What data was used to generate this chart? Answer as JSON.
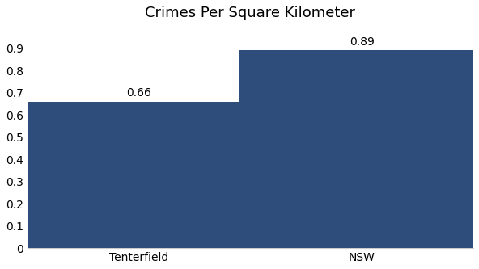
{
  "categories": [
    "Tenterfield",
    "NSW"
  ],
  "values": [
    0.66,
    0.89
  ],
  "bar_color": "#2e4d7b",
  "title": "Crimes Per Square Kilometer",
  "title_fontsize": 13,
  "ylim": [
    0,
    1.0
  ],
  "yticks": [
    0,
    0.1,
    0.2,
    0.3,
    0.4,
    0.5,
    0.6,
    0.7,
    0.8,
    0.9
  ],
  "bar_width": 0.55,
  "tick_fontsize": 10,
  "background_color": "#ffffff",
  "annotation_fontsize": 10,
  "bar_positions": [
    0.25,
    0.75
  ],
  "xlim": [
    0,
    1.0
  ]
}
